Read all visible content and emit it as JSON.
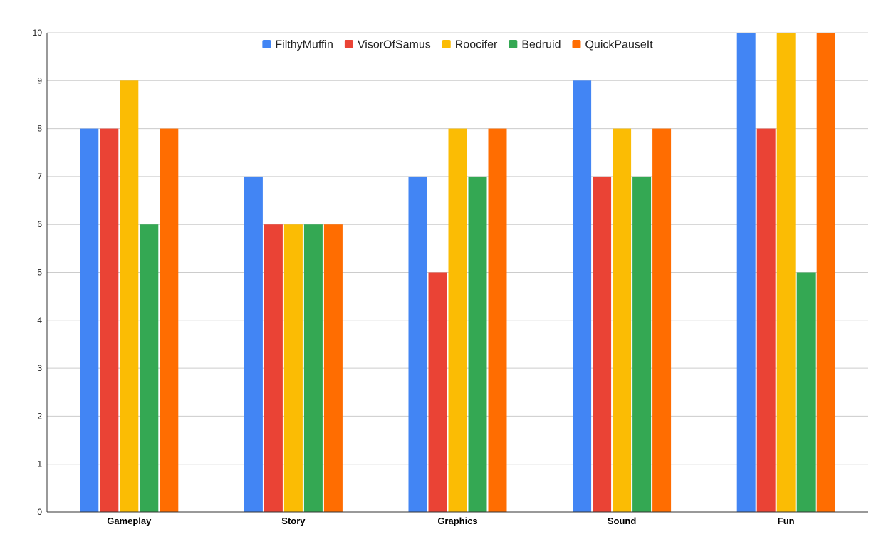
{
  "chart_data": {
    "type": "bar",
    "title": "",
    "xlabel": "",
    "ylabel": "",
    "categories": [
      "Gameplay",
      "Story",
      "Graphics",
      "Sound",
      "Fun"
    ],
    "ylim": [
      0,
      10
    ],
    "yticks": [
      0,
      1,
      2,
      3,
      4,
      5,
      6,
      7,
      8,
      9,
      10
    ],
    "grid": true,
    "legend_position": "top",
    "series": [
      {
        "name": "FilthyMuffin",
        "color": "#4285f4",
        "values": [
          8,
          7,
          7,
          9,
          10
        ]
      },
      {
        "name": "VisorOfSamus",
        "color": "#ea4335",
        "values": [
          8,
          6,
          5,
          7,
          8
        ]
      },
      {
        "name": "Roocifer",
        "color": "#fbbc04",
        "values": [
          9,
          6,
          8,
          8,
          10
        ]
      },
      {
        "name": "Bedruid",
        "color": "#34a853",
        "values": [
          6,
          6,
          7,
          7,
          5
        ]
      },
      {
        "name": "QuickPauseIt",
        "color": "#ff6d01",
        "values": [
          8,
          6,
          8,
          8,
          10
        ]
      }
    ]
  }
}
